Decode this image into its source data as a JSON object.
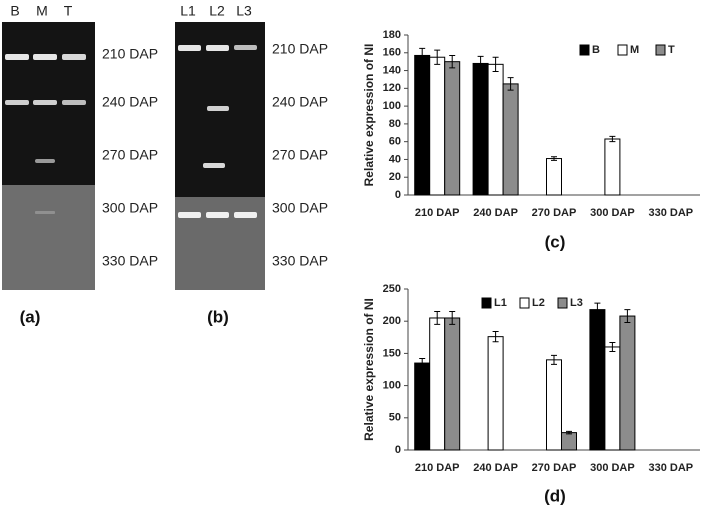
{
  "gels": [
    {
      "lanes": [
        "B",
        "M",
        "T"
      ],
      "stages": [
        "210 DAP",
        "240 DAP",
        "270 DAP",
        "300 DAP",
        "330 DAP"
      ],
      "panel": "(a)"
    },
    {
      "lanes": [
        "L1",
        "L2",
        "L3"
      ],
      "stages": [
        "210 DAP",
        "240 DAP",
        "270 DAP",
        "300 DAP",
        "330 DAP"
      ],
      "panel": "(b)"
    }
  ],
  "chart_data": [
    {
      "type": "bar",
      "panel": "(c)",
      "y_label": "Relative expression of NI",
      "categories": [
        "210 DAP",
        "240 DAP",
        "270 DAP",
        "300 DAP",
        "330 DAP"
      ],
      "series": [
        {
          "name": "B",
          "color": "#000000",
          "values": [
            157,
            148,
            null,
            null,
            null
          ],
          "errors": [
            8,
            8,
            null,
            null,
            null
          ]
        },
        {
          "name": "M",
          "color": "#ffffff",
          "values": [
            155,
            147,
            41,
            63,
            null
          ],
          "errors": [
            8,
            8,
            2,
            3,
            null
          ]
        },
        {
          "name": "T",
          "color": "#8c8c8c",
          "values": [
            150,
            125,
            null,
            null,
            null
          ],
          "errors": [
            7,
            7,
            null,
            null,
            null
          ]
        }
      ],
      "ylim": [
        0,
        180
      ],
      "yticks": [
        0,
        20,
        40,
        60,
        80,
        100,
        120,
        140,
        160,
        180
      ],
      "legend": "top-right"
    },
    {
      "type": "bar",
      "panel": "(d)",
      "y_label": "Relative expression of NI",
      "categories": [
        "210 DAP",
        "240 DAP",
        "270 DAP",
        "300 DAP",
        "330 DAP"
      ],
      "series": [
        {
          "name": "L1",
          "color": "#000000",
          "values": [
            135,
            null,
            null,
            218,
            null
          ],
          "errors": [
            7,
            null,
            null,
            10,
            null
          ]
        },
        {
          "name": "L2",
          "color": "#ffffff",
          "values": [
            205,
            176,
            140,
            160,
            null
          ],
          "errors": [
            10,
            8,
            7,
            7,
            null
          ]
        },
        {
          "name": "L3",
          "color": "#8c8c8c",
          "values": [
            205,
            null,
            27,
            208,
            null
          ],
          "errors": [
            10,
            null,
            2,
            10,
            null
          ]
        }
      ],
      "ylim": [
        0,
        250
      ],
      "yticks": [
        0,
        50,
        100,
        150,
        200,
        250
      ],
      "legend": "top"
    }
  ]
}
